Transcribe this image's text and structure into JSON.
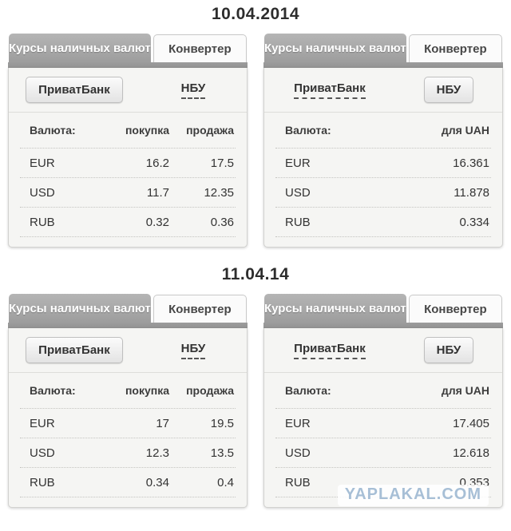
{
  "dates": {
    "day1": "10.04.2014",
    "day2": "11.04.14"
  },
  "labels": {
    "tab_rates": "Курсы наличных валют",
    "tab_converter": "Конвертер",
    "privatbank": "ПриватБанк",
    "nbu": "НБУ",
    "currency_header": "Валюта:",
    "buy_header": "покупка",
    "sell_header": "продажа",
    "uah_header": "для UAH"
  },
  "colors": {
    "tab_active_gray": "#a6a6a6",
    "body_bg": "#f5f5f3",
    "text": "#333333",
    "watermark_blue": "#a7bfd6"
  },
  "widgets": {
    "pb_day1": {
      "rows": [
        {
          "code": "EUR",
          "buy": "16.2",
          "sell": "17.5"
        },
        {
          "code": "USD",
          "buy": "11.7",
          "sell": "12.35"
        },
        {
          "code": "RUB",
          "buy": "0.32",
          "sell": "0.36"
        }
      ]
    },
    "nbu_day1": {
      "rows": [
        {
          "code": "EUR",
          "value": "16.361"
        },
        {
          "code": "USD",
          "value": "11.878"
        },
        {
          "code": "RUB",
          "value": "0.334"
        }
      ]
    },
    "pb_day2": {
      "rows": [
        {
          "code": "EUR",
          "buy": "17",
          "sell": "19.5"
        },
        {
          "code": "USD",
          "buy": "12.3",
          "sell": "13.5"
        },
        {
          "code": "RUB",
          "buy": "0.34",
          "sell": "0.4"
        }
      ]
    },
    "nbu_day2": {
      "rows": [
        {
          "code": "EUR",
          "value": "17.405"
        },
        {
          "code": "USD",
          "value": "12.618"
        },
        {
          "code": "RUB",
          "value": "0.353"
        }
      ]
    }
  },
  "watermark": "YAPLAKAL.COM"
}
